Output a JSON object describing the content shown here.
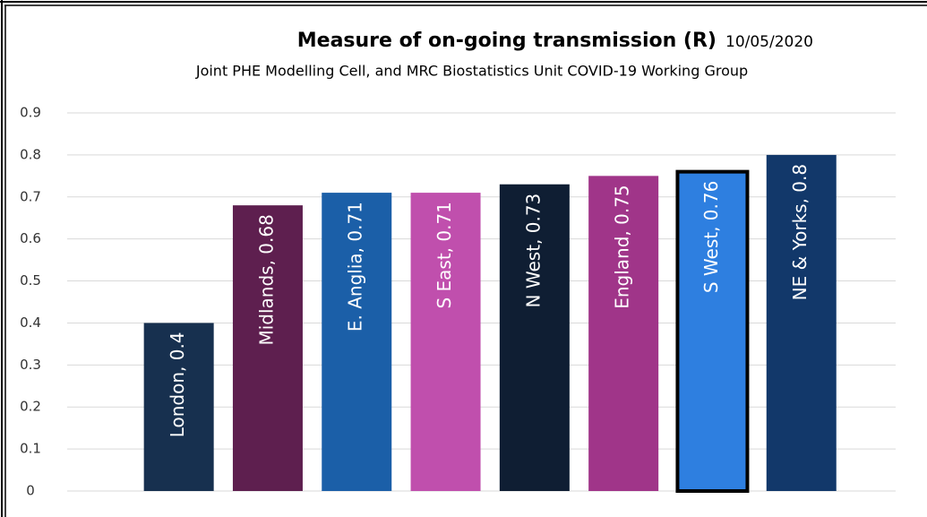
{
  "chart_data": {
    "type": "bar",
    "title": "Measure of on-going transmission (R)",
    "date": "10/05/2020",
    "subtitle": "Joint PHE Modelling Cell, and MRC Biostatistics Unit COVID-19 Working Group",
    "values": [
      0.4,
      0.68,
      0.71,
      0.71,
      0.73,
      0.75,
      0.76,
      0.8
    ],
    "value_labels": [
      "London, 0.4",
      "Midlands, 0.68",
      "E. Anglia, 0.71",
      "S East, 0.71",
      "N West, 0.73",
      "England, 0.75",
      "S West, 0.76",
      "NE & Yorks, 0.8"
    ],
    "colors": [
      "#17304f",
      "#5e1f4f",
      "#1b5fa8",
      "#c04fad",
      "#0f1e33",
      "#a03589",
      "#2e7fe0",
      "#12386a"
    ],
    "outlined": 6,
    "outline_color": "#000000",
    "ylim": [
      0,
      0.9
    ],
    "yticks": [
      0,
      0.1,
      0.2,
      0.3,
      0.4,
      0.5,
      0.6,
      0.7,
      0.8,
      0.9
    ],
    "grid": true
  }
}
